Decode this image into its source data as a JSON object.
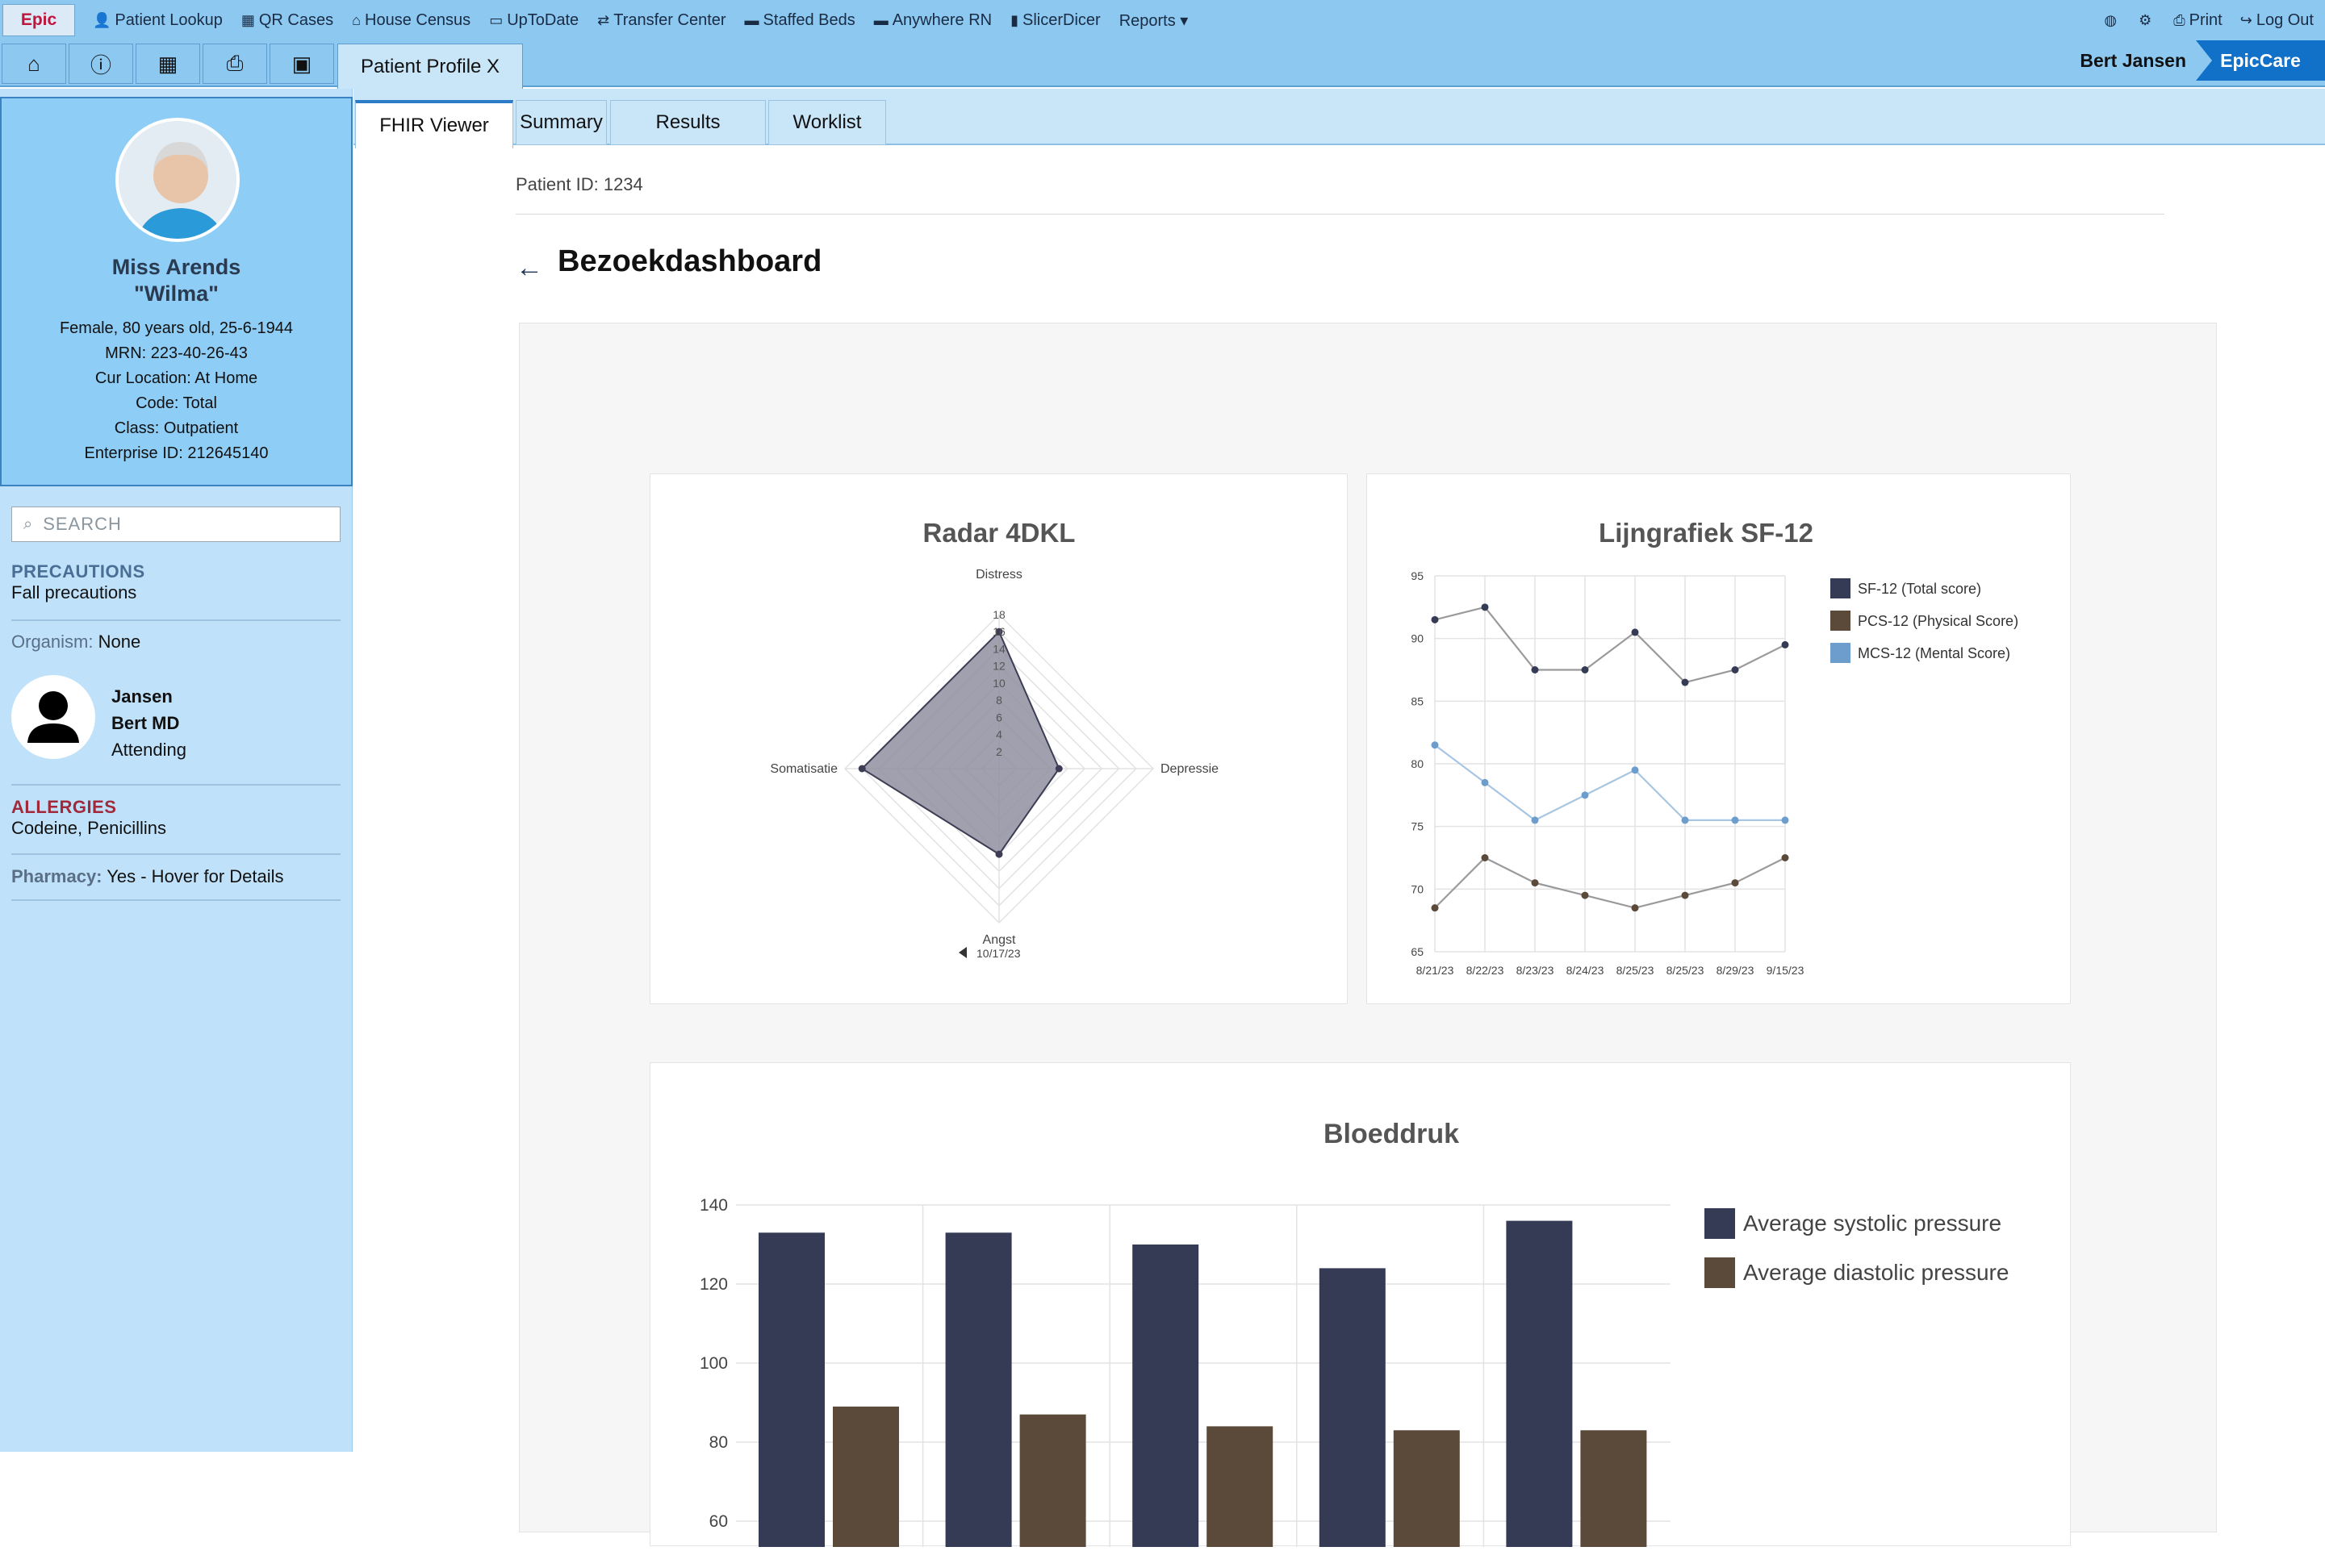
{
  "topbar": {
    "logo": "Epic",
    "menu": [
      {
        "icon": "person-icon",
        "glyph": "👤",
        "label": "Patient Lookup"
      },
      {
        "icon": "qr-icon",
        "glyph": "▦",
        "label": "QR Cases"
      },
      {
        "icon": "house-icon",
        "glyph": "⌂",
        "label": "House Census"
      },
      {
        "icon": "calendar-icon",
        "glyph": "▭",
        "label": "UpToDate"
      },
      {
        "icon": "transfer-icon",
        "glyph": "⇄",
        "label": "Transfer Center"
      },
      {
        "icon": "bed-icon",
        "glyph": "▬",
        "label": "Staffed Beds"
      },
      {
        "icon": "bed-icon",
        "glyph": "▬",
        "label": "Anywhere RN"
      },
      {
        "icon": "bar-chart-icon",
        "glyph": "▮",
        "label": "SlicerDicer"
      },
      {
        "icon": "",
        "glyph": "",
        "label": "Reports ▾"
      }
    ],
    "right": [
      {
        "icon": "globe-icon",
        "glyph": "◍",
        "label": ""
      },
      {
        "icon": "gear-icon",
        "glyph": "⚙",
        "label": ""
      },
      {
        "icon": "print-icon",
        "glyph": "⎙",
        "label": "Print"
      },
      {
        "icon": "logout-icon",
        "glyph": "↪",
        "label": "Log Out"
      }
    ]
  },
  "toolbar": {
    "buttons": [
      {
        "icon": "home-icon",
        "glyph": "⌂"
      },
      {
        "icon": "info-icon",
        "glyph": "ⓘ"
      },
      {
        "icon": "qr-icon",
        "glyph": "▦"
      },
      {
        "icon": "print-icon",
        "glyph": "⎙"
      },
      {
        "icon": "image-icon",
        "glyph": "▣"
      }
    ],
    "patient_tab": "Patient Profile X",
    "user": "Bert Jansen",
    "brand": "EpicCare"
  },
  "patient": {
    "name": "Miss Arends",
    "nickname": "\"Wilma\"",
    "details": [
      "Female, 80 years old, 25-6-1944",
      "MRN: 223-40-26-43",
      "Cur Location: At Home",
      "Code: Total",
      "Class: Outpatient",
      "Enterprise ID: 212645140"
    ]
  },
  "sidebar": {
    "search_placeholder": "SEARCH",
    "precautions_title": "PRECAUTIONS",
    "precautions_value": "Fall precautions",
    "organism_label": "Organism:",
    "organism_value": "None",
    "provider": {
      "last": "Jansen",
      "first": "Bert MD",
      "role": "Attending"
    },
    "allergies_title": "ALLERGIES",
    "allergies_value": "Codeine, Penicillins",
    "pharmacy_label": "Pharmacy:",
    "pharmacy_value": "Yes - Hover for Details"
  },
  "main": {
    "tabs": [
      "FHIR Viewer",
      "Summary",
      "Results",
      "Worklist"
    ],
    "active_tab": 0,
    "patient_id": "Patient ID: 1234",
    "title": "Bezoekdashboard"
  },
  "chart_data": [
    {
      "type": "radar",
      "title": "Radar 4DKL",
      "axes": [
        "Distress",
        "Depressie",
        "Angst",
        "Somatisatie"
      ],
      "values": [
        16,
        7,
        10,
        16
      ],
      "rlim": [
        0,
        18
      ],
      "ticks": [
        2,
        4,
        6,
        8,
        10,
        12,
        14,
        16,
        18
      ],
      "date": "10/17/23",
      "fill": "#8f8fa0",
      "stroke": "#3d3d55"
    },
    {
      "type": "line",
      "title": "Lijngrafiek SF-12",
      "x": [
        "8/21/23",
        "8/22/23",
        "8/23/23",
        "8/24/23",
        "8/25/23",
        "8/25/23",
        "8/29/23",
        "9/15/23"
      ],
      "ylim": [
        65,
        95
      ],
      "yticks": [
        65,
        70,
        75,
        80,
        85,
        90,
        95
      ],
      "grid": true,
      "legend": "right",
      "series": [
        {
          "name": "SF-12 (Total score)",
          "color": "#353a55",
          "line": "#9a9a9a",
          "values": [
            91.5,
            92.5,
            87.5,
            87.5,
            90.5,
            86.5,
            87.5,
            89.5
          ]
        },
        {
          "name": "PCS-12 (Physical Score)",
          "color": "#5b4a3a",
          "line": "#9a9a9a",
          "values": [
            68.5,
            72.5,
            70.5,
            69.5,
            68.5,
            69.5,
            70.5,
            72.5
          ]
        },
        {
          "name": "MCS-12 (Mental Score)",
          "color": "#6d9dcc",
          "line": "#a8c6e2",
          "values": [
            81.5,
            78.5,
            75.5,
            77.5,
            79.5,
            75.5,
            75.5,
            75.5
          ]
        }
      ]
    },
    {
      "type": "bar",
      "title": "Bloeddruk",
      "categories": [
        "",
        "",
        "",
        "",
        ""
      ],
      "ylim": [
        60,
        140
      ],
      "yticks": [
        60,
        80,
        100,
        120,
        140
      ],
      "grid": true,
      "legend": "right",
      "series": [
        {
          "name": "Average systolic pressure",
          "color": "#353a55",
          "values": [
            133,
            133,
            130,
            124,
            136
          ]
        },
        {
          "name": "Average diastolic pressure",
          "color": "#5b4a3a",
          "values": [
            89,
            87,
            84,
            83,
            83
          ]
        }
      ]
    }
  ]
}
